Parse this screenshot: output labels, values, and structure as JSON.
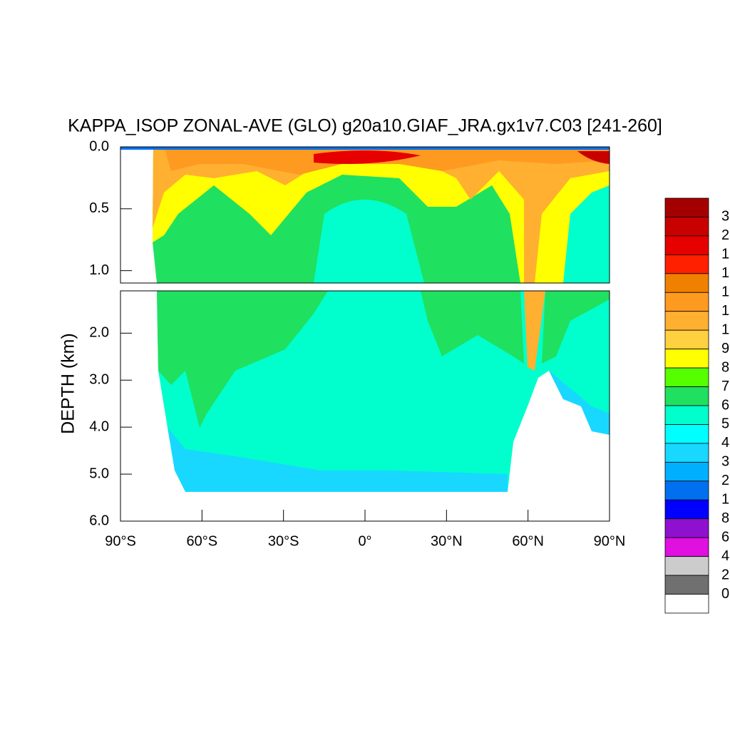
{
  "chart_data": {
    "type": "contour",
    "title": "KAPPA_ISOP ZONAL-AVE (GLO) g20a10.GIAF_JRA.gx1v7.C03 [241-260]",
    "y_label": "DEPTH (km)",
    "xlim": [
      -90,
      90
    ],
    "xticks": [
      {
        "value": -90,
        "label": "90°S"
      },
      {
        "value": -60,
        "label": "60°S"
      },
      {
        "value": -30,
        "label": "30°S"
      },
      {
        "value": 0,
        "label": "0°"
      },
      {
        "value": 30,
        "label": "30°N"
      },
      {
        "value": 60,
        "label": "60°N"
      },
      {
        "value": 90,
        "label": "90°N"
      }
    ],
    "upper_ylim": [
      0,
      1.1
    ],
    "upper_yticks": [
      {
        "value": 0,
        "label": "0.0"
      },
      0.5,
      {
        "value": 1,
        "label": "1.0"
      }
    ],
    "lower_ylim": [
      1.1,
      6
    ],
    "lower_yticks": [
      {
        "value": 2,
        "label": "2.0"
      },
      {
        "value": 3,
        "label": "3.0"
      },
      {
        "value": 4,
        "label": "4.0"
      },
      {
        "value": 5,
        "label": "5.0"
      },
      {
        "value": 6,
        "label": "6.0"
      }
    ],
    "colorbar_colors": [
      "#a50000",
      "#c80000",
      "#e60000",
      "#ff2000",
      "#f08000",
      "#ff9a20",
      "#ffb030",
      "#ffd040",
      "#ffff00",
      "#55ff00",
      "#20e060",
      "#00ffcc",
      "#00ffff",
      "#18d8ff",
      "#00b0ff",
      "#0070f0",
      "#0000ff",
      "#9010d0",
      "#e010e0",
      "#cccccc",
      "#707070",
      "#ffffff"
    ],
    "colorbar_labels": [
      "3",
      "2",
      "1",
      "1",
      "1",
      "1",
      "1",
      "9",
      "8",
      "7",
      "6",
      "5",
      "4",
      "3",
      "2",
      "1",
      "8",
      "6",
      "4",
      "2",
      "0"
    ]
  }
}
